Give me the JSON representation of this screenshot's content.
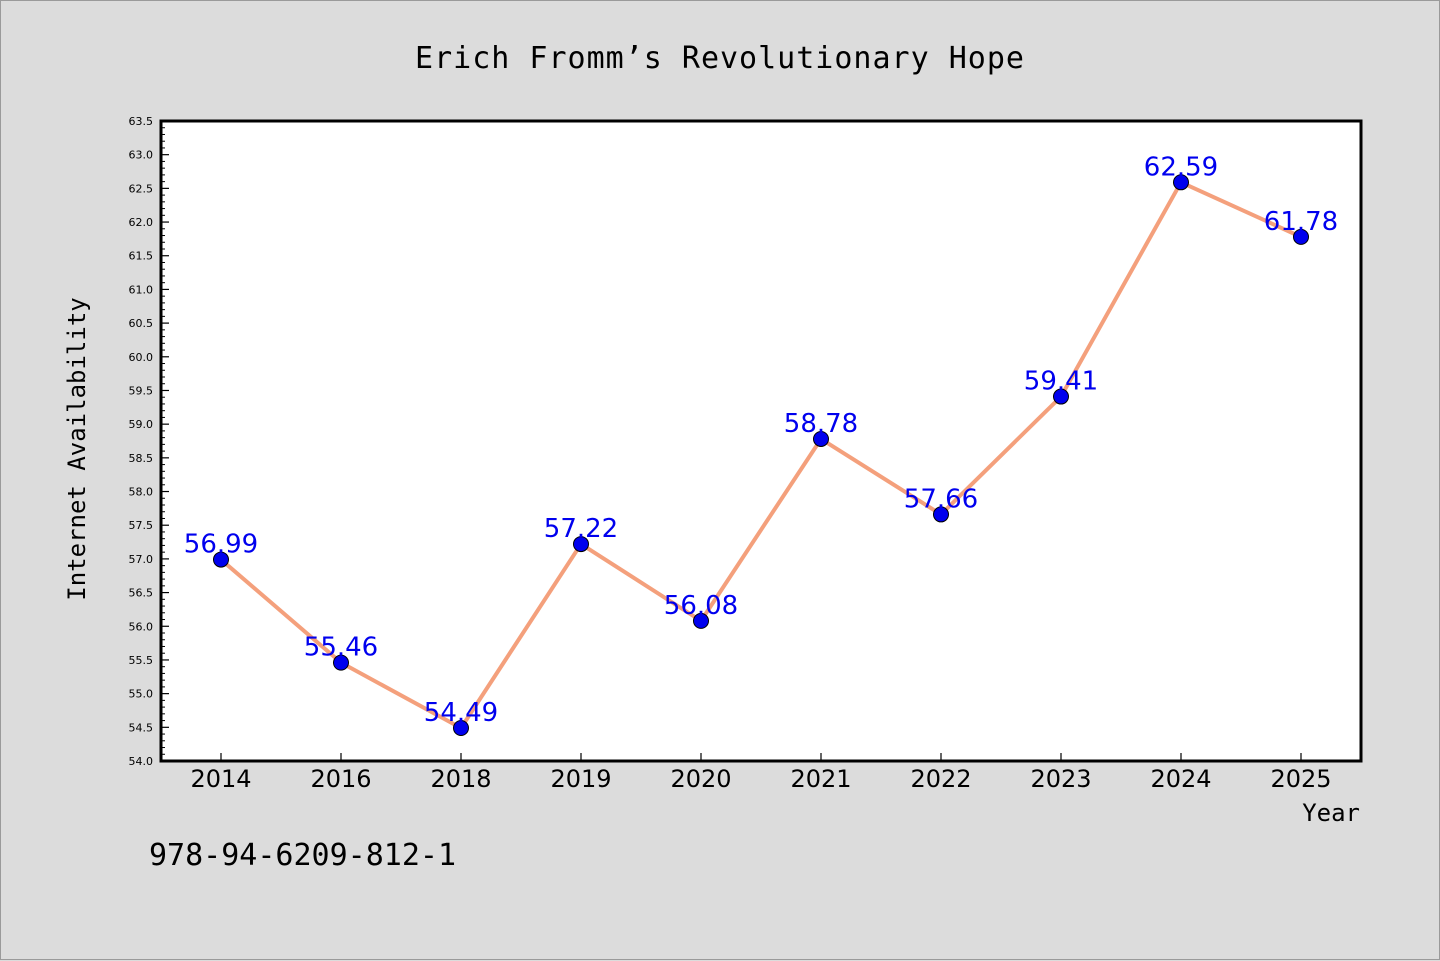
{
  "chart_data": {
    "type": "line",
    "title": "Erich Fromm’s Revolutionary Hope",
    "xlabel": "Year",
    "ylabel": "Internet Availability",
    "categories": [
      "2014",
      "2016",
      "2018",
      "2019",
      "2020",
      "2021",
      "2022",
      "2023",
      "2024",
      "2025"
    ],
    "series": [
      {
        "values": [
          56.99,
          55.46,
          54.49,
          57.22,
          56.08,
          58.78,
          57.66,
          59.41,
          62.59,
          61.78
        ],
        "value_labels": [
          "56.99",
          "55.46",
          "54.49",
          "57.22",
          "56.08",
          "58.78",
          "57.66",
          "59.41",
          "62.59",
          "61.78"
        ],
        "line_color": "#f4a07c",
        "marker_color": "#0000ee",
        "label_color": "#0000ee"
      }
    ],
    "ylim": [
      54.0,
      63.5
    ],
    "yticks": [
      "54.0",
      "54.5",
      "55.0",
      "55.5",
      "56.0",
      "56.5",
      "57.0",
      "57.5",
      "58.0",
      "58.5",
      "59.0",
      "59.5",
      "60.0",
      "60.5",
      "61.0",
      "61.5",
      "62.0",
      "62.5",
      "63.0",
      "63.5"
    ],
    "grid": false,
    "legend": "none"
  },
  "footnote": "978-94-6209-812-1",
  "colors": {
    "background": "#dcdcdc",
    "plot_area": "#ffffff",
    "axis": "#000000"
  }
}
